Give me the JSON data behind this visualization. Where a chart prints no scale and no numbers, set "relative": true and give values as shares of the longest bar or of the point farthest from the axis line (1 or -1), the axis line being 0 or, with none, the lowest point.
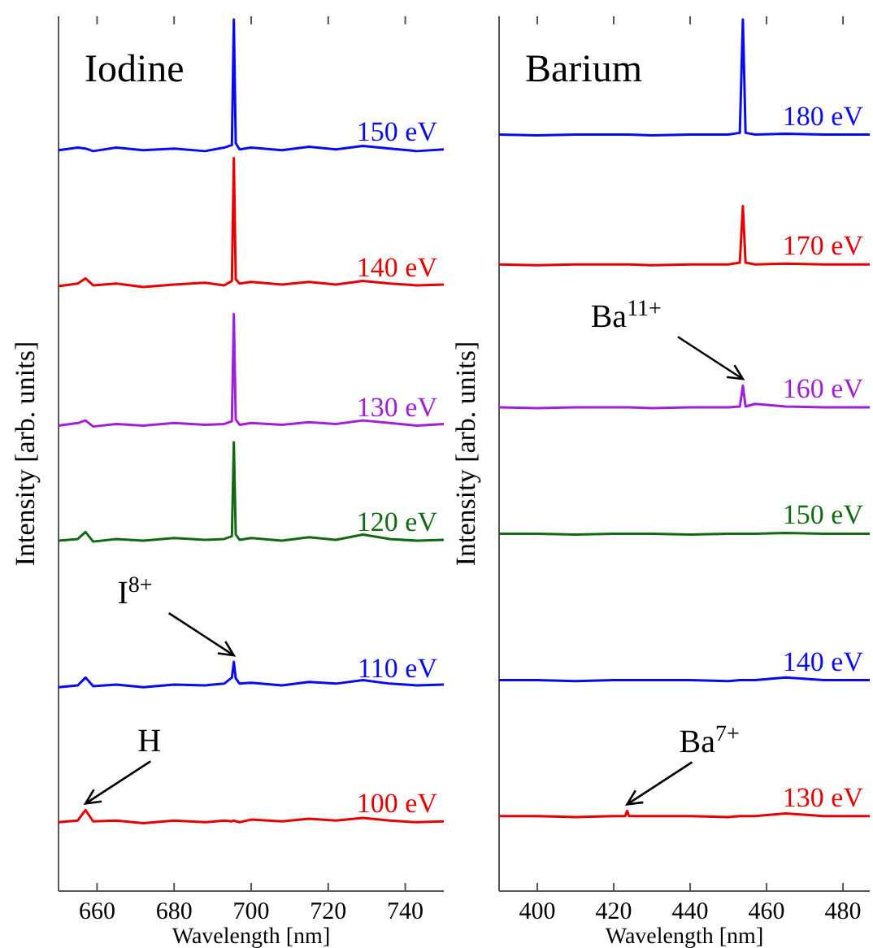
{
  "chart_data": [
    {
      "type": "line",
      "title": "Iodine",
      "xlabel": "Wavelength [nm]",
      "ylabel": "Intensity [arb. units]",
      "relative": true,
      "xlim": [
        650,
        750
      ],
      "xticks": [
        660,
        680,
        700,
        720,
        740
      ],
      "x": [
        650,
        655,
        657,
        659,
        665,
        672,
        680,
        688,
        693,
        695,
        695.5,
        696,
        697,
        700,
        708,
        715,
        722,
        729,
        736,
        743,
        750
      ],
      "series": [
        {
          "name": "150 eV",
          "color": "#0a0aee",
          "values": [
            0.85,
            0.853,
            0.852,
            0.849,
            0.853,
            0.85,
            0.852,
            0.849,
            0.853,
            0.856,
            1.0,
            0.858,
            0.851,
            0.853,
            0.85,
            0.854,
            0.851,
            0.855,
            0.852,
            0.849,
            0.851
          ]
        },
        {
          "name": "140 eV",
          "color": "#e60000",
          "values": [
            0.694,
            0.697,
            0.703,
            0.695,
            0.697,
            0.693,
            0.696,
            0.698,
            0.695,
            0.7,
            0.841,
            0.702,
            0.697,
            0.699,
            0.696,
            0.699,
            0.696,
            0.7,
            0.697,
            0.695,
            0.696
          ]
        },
        {
          "name": "130 eV",
          "color": "#a020d8",
          "values": [
            0.534,
            0.537,
            0.54,
            0.533,
            0.536,
            0.534,
            0.537,
            0.535,
            0.536,
            0.539,
            0.662,
            0.541,
            0.535,
            0.537,
            0.535,
            0.538,
            0.536,
            0.54,
            0.537,
            0.534,
            0.536
          ]
        },
        {
          "name": "120 eV",
          "color": "#116a11",
          "values": [
            0.402,
            0.404,
            0.412,
            0.401,
            0.404,
            0.402,
            0.405,
            0.403,
            0.404,
            0.407,
            0.515,
            0.409,
            0.403,
            0.405,
            0.402,
            0.406,
            0.403,
            0.409,
            0.404,
            0.402,
            0.403
          ]
        },
        {
          "name": "110 eV",
          "color": "#0a0aee",
          "values": [
            0.234,
            0.236,
            0.245,
            0.235,
            0.237,
            0.234,
            0.237,
            0.236,
            0.238,
            0.245,
            0.263,
            0.244,
            0.238,
            0.239,
            0.236,
            0.24,
            0.238,
            0.242,
            0.238,
            0.236,
            0.237
          ]
        },
        {
          "name": "100 eV",
          "color": "#e60000",
          "values": [
            0.079,
            0.081,
            0.093,
            0.08,
            0.081,
            0.078,
            0.081,
            0.079,
            0.081,
            0.08,
            0.081,
            0.08,
            0.079,
            0.082,
            0.08,
            0.083,
            0.081,
            0.084,
            0.081,
            0.079,
            0.08
          ]
        }
      ],
      "annotations": [
        {
          "text": "I$^{8+}$",
          "x": 695.5,
          "y": 0.263
        },
        {
          "text": "H",
          "x": 657,
          "y": 0.093
        }
      ]
    },
    {
      "type": "line",
      "title": "Barium",
      "xlabel": "Wavelength [nm]",
      "ylabel": "Intensity [arb. units]",
      "relative": true,
      "xlim": [
        390,
        487
      ],
      "xticks": [
        400,
        420,
        440,
        460,
        480
      ],
      "x": [
        390,
        400,
        410,
        420,
        423,
        423.5,
        424,
        430,
        440,
        450,
        453,
        453.8,
        454.5,
        457,
        465,
        475,
        487
      ],
      "series": [
        {
          "name": "180 eV",
          "color": "#0a0aee",
          "values": [
            0.868,
            0.867,
            0.868,
            0.868,
            0.868,
            0.868,
            0.868,
            0.867,
            0.868,
            0.868,
            0.87,
            1.0,
            0.87,
            0.868,
            0.869,
            0.868,
            0.868
          ]
        },
        {
          "name": "170 eV",
          "color": "#e60000",
          "values": [
            0.719,
            0.718,
            0.719,
            0.719,
            0.719,
            0.719,
            0.719,
            0.718,
            0.719,
            0.719,
            0.721,
            0.786,
            0.721,
            0.719,
            0.72,
            0.719,
            0.719
          ]
        },
        {
          "name": "160 eV",
          "color": "#a020d8",
          "values": [
            0.555,
            0.554,
            0.555,
            0.555,
            0.555,
            0.555,
            0.555,
            0.554,
            0.555,
            0.555,
            0.556,
            0.58,
            0.556,
            0.559,
            0.556,
            0.555,
            0.555
          ]
        },
        {
          "name": "150 eV",
          "color": "#116a11",
          "values": [
            0.41,
            0.41,
            0.409,
            0.41,
            0.41,
            0.41,
            0.41,
            0.41,
            0.409,
            0.41,
            0.41,
            0.41,
            0.41,
            0.41,
            0.411,
            0.41,
            0.41
          ]
        },
        {
          "name": "140 eV",
          "color": "#0a0aee",
          "values": [
            0.242,
            0.242,
            0.241,
            0.242,
            0.242,
            0.242,
            0.242,
            0.242,
            0.242,
            0.241,
            0.242,
            0.242,
            0.242,
            0.242,
            0.245,
            0.242,
            0.242
          ]
        },
        {
          "name": "130 eV",
          "color": "#e60000",
          "values": [
            0.086,
            0.086,
            0.085,
            0.086,
            0.086,
            0.092,
            0.086,
            0.086,
            0.086,
            0.085,
            0.086,
            0.086,
            0.086,
            0.086,
            0.089,
            0.086,
            0.086
          ]
        }
      ],
      "annotations": [
        {
          "text": "Ba$^{11+}$",
          "x": 453.8,
          "y": 0.58
        },
        {
          "text": "Ba$^{7+}$",
          "x": 423.5,
          "y": 0.092
        }
      ]
    }
  ]
}
